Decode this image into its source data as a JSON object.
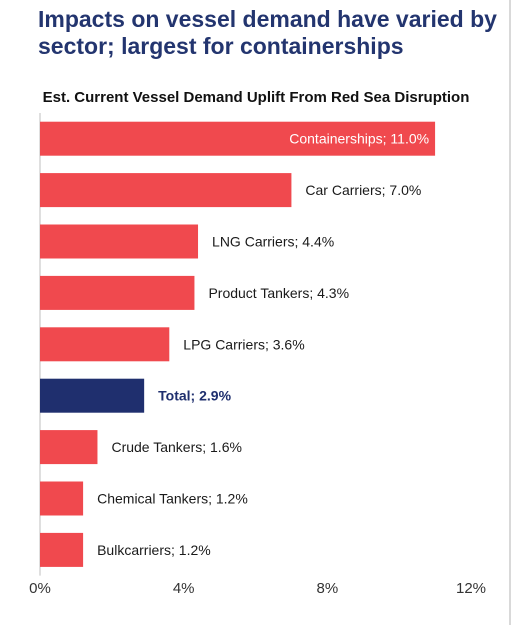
{
  "headline": "Impacts on vessel demand have varied by sector; largest for containerships",
  "chart_data": {
    "type": "bar",
    "orientation": "horizontal",
    "title": "Est. Current Vessel Demand Uplift From Red Sea Disruption",
    "xlabel": "",
    "ylabel": "",
    "xlim": [
      0,
      12
    ],
    "x_ticks": [
      "0%",
      "4%",
      "8%",
      "12%"
    ],
    "grid": false,
    "legend": "none",
    "categories": [
      "Containerships",
      "Car Carriers",
      "LNG Carriers",
      "Product Tankers",
      "LPG Carriers",
      "Total",
      "Crude Tankers",
      "Chemical Tankers",
      "Bulkcarriers"
    ],
    "values": [
      11.0,
      7.0,
      4.4,
      4.3,
      3.6,
      2.9,
      1.6,
      1.2,
      1.2
    ],
    "data_labels": [
      "Containerships; 11.0%",
      "Car Carriers; 7.0%",
      "LNG Carriers; 4.4%",
      "Product Tankers; 4.3%",
      "LPG Carriers; 3.6%",
      "Total; 2.9%",
      "Crude Tankers; 1.6%",
      "Chemical Tankers; 1.2%",
      "Bulkcarriers; 1.2%"
    ],
    "bar_color": "#f0494e",
    "highlight_color": "#1f2f6e",
    "highlight_category": "Total"
  }
}
